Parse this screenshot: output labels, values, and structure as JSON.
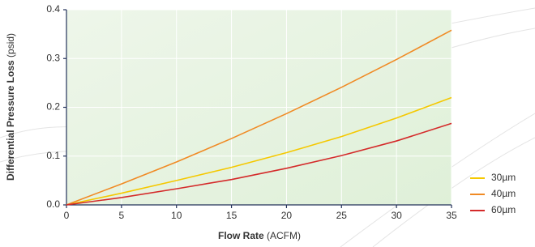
{
  "chart_data": {
    "type": "line",
    "x_label": "Flow Rate",
    "x_unit": "(ACFM)",
    "y_label": "Differential Pressure Loss",
    "y_unit": "(psid)",
    "x": [
      0,
      5,
      10,
      15,
      20,
      25,
      30,
      35
    ],
    "series": [
      {
        "name": "30µm",
        "color": "#f5c800",
        "values": [
          0,
          0.024,
          0.05,
          0.077,
          0.107,
          0.14,
          0.178,
          0.22
        ]
      },
      {
        "name": "40µm",
        "color": "#f08a24",
        "values": [
          0,
          0.043,
          0.088,
          0.136,
          0.187,
          0.241,
          0.298,
          0.358
        ]
      },
      {
        "name": "60µm",
        "color": "#d42a2a",
        "values": [
          0,
          0.015,
          0.033,
          0.052,
          0.075,
          0.101,
          0.131,
          0.167
        ]
      }
    ],
    "xlim": [
      0,
      35
    ],
    "xticks": [
      0,
      5,
      10,
      15,
      20,
      25,
      30,
      35
    ],
    "ylim": [
      0,
      0.4
    ],
    "yticks": [
      {
        "value": 0,
        "label": "0.0"
      },
      0.1,
      0.2,
      0.3,
      0.4
    ],
    "grid": true,
    "legend": "right"
  }
}
